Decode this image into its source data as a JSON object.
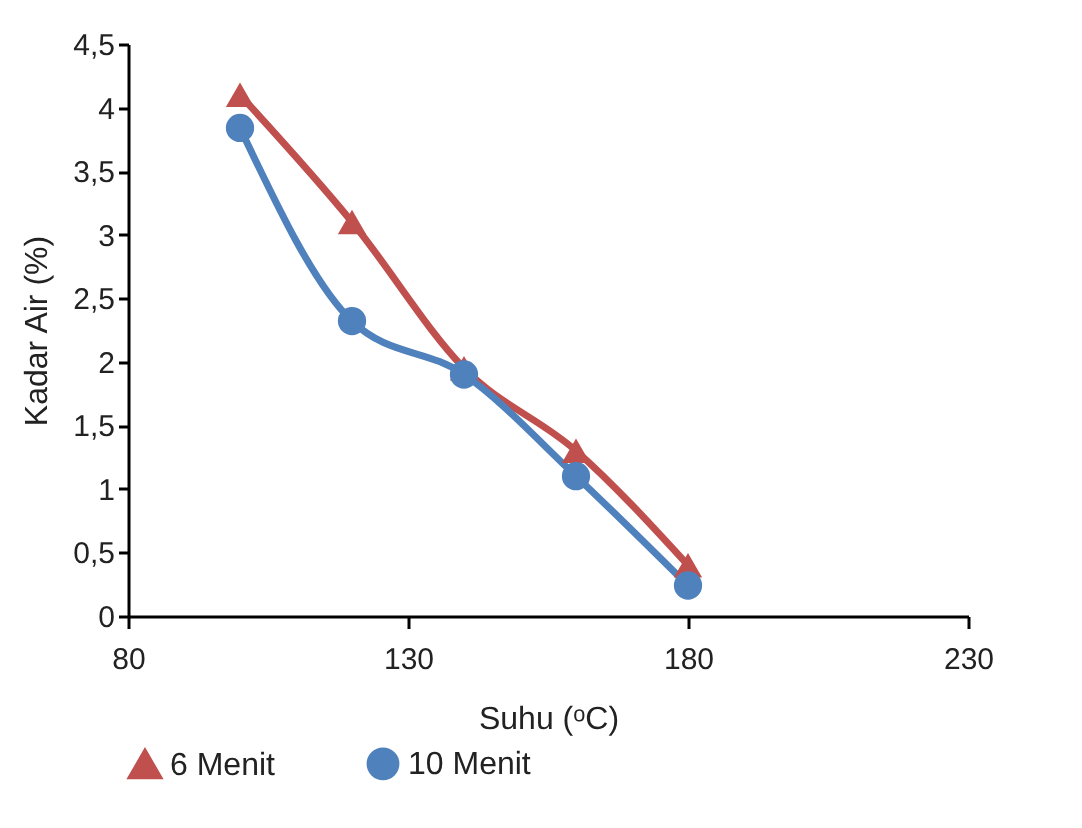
{
  "chart_data": {
    "type": "line",
    "xlabel": "Suhu (ᵒC)",
    "ylabel": "Kadar Air (%)",
    "xlim": [
      80,
      230
    ],
    "xticks": [
      80,
      130,
      180,
      230
    ],
    "ylim": [
      0,
      4.5
    ],
    "yticks": [
      0,
      {
        "value": 0.5,
        "label": "0,5"
      },
      1,
      {
        "value": 1.5,
        "label": "1,5"
      },
      2,
      {
        "value": 2.5,
        "label": "2,5"
      },
      3,
      {
        "value": 3.5,
        "label": "3,5"
      },
      4,
      {
        "value": 4.5,
        "label": "4,5"
      }
    ],
    "x": [
      100,
      120,
      140,
      160,
      180
    ],
    "series": [
      {
        "name": "6 Menit",
        "color": "#c0504d",
        "marker": "triangle",
        "values": [
          4.1,
          3.1,
          1.95,
          1.3,
          0.4
        ]
      },
      {
        "name": "10 Menit",
        "color": "#4f81bd",
        "marker": "circle",
        "values": [
          3.84,
          2.32,
          1.9,
          1.1,
          0.24
        ]
      }
    ],
    "grid": false,
    "legend": "bottom",
    "line_style": "solid"
  }
}
